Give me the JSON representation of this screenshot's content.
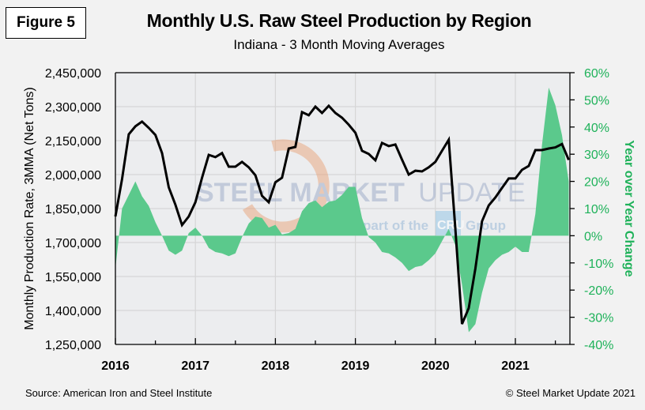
{
  "figure_label": "Figure 5",
  "footer": {
    "source": "Source: American Iron and Steel Institute",
    "copyright": "© Steel Market Update 2021"
  },
  "watermark": {
    "brand_bold": "STEEL MARKET",
    "brand_light": "UPDATE",
    "tagline_pre": "part of the",
    "tagline_badge": "CRU",
    "tagline_post": "Group"
  },
  "colors": {
    "line": "#000000",
    "area": "#5bc98c",
    "right_axis": "#1fb25a",
    "plot_bg": "#ecedef",
    "grid": "#d6d6d6"
  },
  "chart_data": {
    "type": "line+area",
    "title": "Monthly U.S. Raw Steel Production by Region",
    "subtitle": "Indiana - 3 Month Moving Averages",
    "xlabel": "",
    "ylabel": "Monthly Production Rate, 3MMA (Net Tons)",
    "y2label": "Year over Year Change",
    "x_start": "2016-01",
    "x_end": "2021-09",
    "x_tick_labels": [
      "2016",
      "2017",
      "2018",
      "2019",
      "2020",
      "2021"
    ],
    "ylim": [
      1250000,
      2450000
    ],
    "y_ticks": [
      1250000,
      1400000,
      1550000,
      1700000,
      1850000,
      2000000,
      2150000,
      2300000,
      2450000
    ],
    "y_tick_labels": [
      "1,250,000",
      "1,400,000",
      "1,550,000",
      "1,700,000",
      "1,850,000",
      "2,000,000",
      "2,150,000",
      "2,300,000",
      "2,450,000"
    ],
    "y2lim": [
      -40,
      60
    ],
    "y2_ticks": [
      -40,
      -30,
      -20,
      -10,
      0,
      10,
      20,
      30,
      40,
      50,
      60
    ],
    "y2_tick_labels": [
      "-40%",
      "-30%",
      "-20%",
      "-10%",
      "0%",
      "10%",
      "20%",
      "30%",
      "40%",
      "50%",
      "60%"
    ],
    "grid": true,
    "legend": "none",
    "series": [
      {
        "name": "Production 3MMA (Net Tons)",
        "type": "line",
        "axis": "left",
        "values": [
          1815000,
          1980000,
          2178000,
          2213000,
          2234000,
          2206000,
          2175000,
          2095000,
          1944000,
          1867000,
          1777000,
          1815000,
          1878000,
          1986000,
          2087000,
          2077000,
          2095000,
          2035000,
          2035000,
          2056000,
          2032000,
          1997000,
          1906000,
          1878000,
          1966000,
          1986000,
          2115000,
          2122000,
          2276000,
          2262000,
          2300000,
          2272000,
          2304000,
          2272000,
          2251000,
          2220000,
          2185000,
          2105000,
          2091000,
          2063000,
          2140000,
          2126000,
          2133000,
          2066000,
          2000000,
          2017000,
          2014000,
          2032000,
          2056000,
          2105000,
          2154000,
          1759000,
          1340000,
          1410000,
          1585000,
          1794000,
          1864000,
          1899000,
          1941000,
          1983000,
          1983000,
          2021000,
          2038000,
          2108000,
          2108000,
          2115000,
          2120000,
          2135000,
          2065000
        ]
      },
      {
        "name": "Year over Year Change (%)",
        "type": "area",
        "axis": "right",
        "values": [
          -12,
          10,
          15,
          20,
          14.5,
          11,
          5,
          0,
          -5.5,
          -7,
          -5.5,
          1,
          3,
          0,
          -4.5,
          -6,
          -6.5,
          -7.5,
          -6.5,
          -0.5,
          4.5,
          7,
          6.5,
          3,
          4,
          0.5,
          1,
          2.5,
          9,
          12,
          13,
          10.5,
          12.5,
          13,
          15,
          18,
          18,
          6.5,
          -0.5,
          -2.5,
          -6,
          -6.5,
          -8,
          -10,
          -13,
          -11.5,
          -11,
          -9,
          -6.5,
          -2,
          2.5,
          -3.5,
          -18,
          -35.5,
          -32.5,
          -21,
          -12,
          -9,
          -7,
          -6,
          -4,
          -6,
          -6,
          8,
          33.5,
          54.5,
          48,
          37,
          20
        ]
      }
    ]
  }
}
